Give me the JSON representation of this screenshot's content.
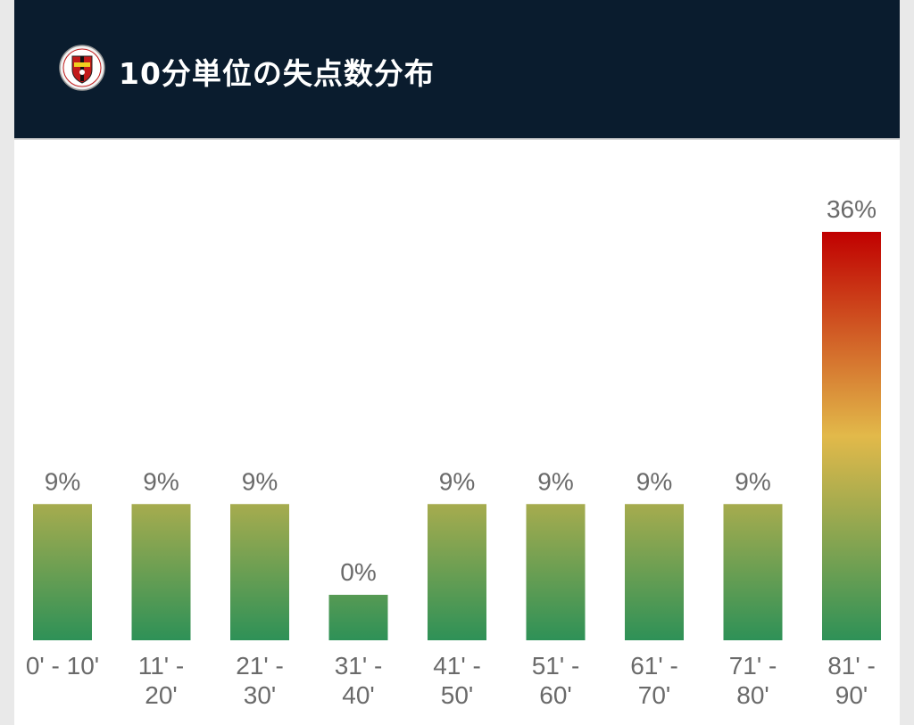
{
  "header": {
    "title": "10分単位の失点数分布",
    "emblem_icon": "club-crest-icon"
  },
  "colors": {
    "header_bg": "#0a1c2e",
    "bar_low": "#2e9157",
    "bar_mid": "#e2b94a",
    "bar_high": "#c00000"
  },
  "chart_data": {
    "type": "bar",
    "title": "10分単位の失点数分布",
    "categories": [
      [
        "0' - 10'"
      ],
      [
        "11' -",
        "20'"
      ],
      [
        "21' -",
        "30'"
      ],
      [
        "31' -",
        "40'"
      ],
      [
        "41' -",
        "50'"
      ],
      [
        "51' -",
        "60'"
      ],
      [
        "61' -",
        "70'"
      ],
      [
        "71' -",
        "80'"
      ],
      [
        "81' -",
        "90'"
      ]
    ],
    "values": [
      9,
      9,
      9,
      0,
      9,
      9,
      9,
      9,
      36
    ],
    "value_labels": [
      "9%",
      "9%",
      "9%",
      "0%",
      "9%",
      "9%",
      "9%",
      "9%",
      "36%"
    ],
    "ylim": [
      0,
      36
    ],
    "grid": false,
    "legend": "none"
  }
}
